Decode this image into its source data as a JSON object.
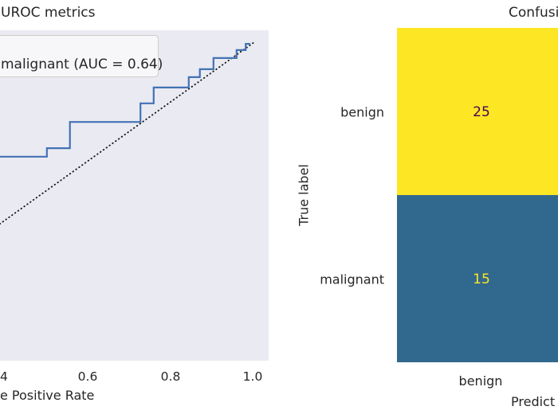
{
  "chart_data": [
    {
      "type": "line",
      "subtype": "roc-curve",
      "title_visible": "UROC metrics",
      "xlabel_visible": "e Positive Rate",
      "legend": [
        "malignant (AUC = 0.64)"
      ],
      "auc": 0.64,
      "grid": false,
      "xticks_visible": [
        "4",
        "0.6",
        "0.8",
        "1.0"
      ],
      "xtick_values": [
        0.4,
        0.6,
        0.8,
        1.0
      ],
      "x_visible_range": [
        0.386,
        1.05
      ],
      "series": [
        {
          "name": "malignant (AUC = 0.64)",
          "color": "#4272b4",
          "points": [
            [
              0.386,
              0.614
            ],
            [
              0.5,
              0.614
            ],
            [
              0.5,
              0.643
            ],
            [
              0.556,
              0.643
            ],
            [
              0.556,
              0.732
            ],
            [
              0.727,
              0.732
            ],
            [
              0.727,
              0.795
            ],
            [
              0.759,
              0.795
            ],
            [
              0.759,
              0.849
            ],
            [
              0.844,
              0.849
            ],
            [
              0.844,
              0.884
            ],
            [
              0.871,
              0.884
            ],
            [
              0.871,
              0.911
            ],
            [
              0.904,
              0.911
            ],
            [
              0.904,
              0.949
            ],
            [
              0.96,
              0.949
            ],
            [
              0.96,
              0.976
            ],
            [
              0.982,
              0.976
            ],
            [
              0.982,
              0.997
            ],
            [
              0.991,
              0.997
            ],
            [
              0.991,
              1.0
            ]
          ]
        }
      ],
      "chance_line": {
        "points": [
          [
            0.386,
            0.386
          ],
          [
            1.0,
            1.0
          ]
        ],
        "color": "#1a1a1a",
        "style": "dotted"
      },
      "plot_bg": "#eaeaf2"
    },
    {
      "type": "heatmap",
      "subtype": "confusion-matrix",
      "title_visible": "Confusi",
      "ylabel": "True label",
      "xlabel_visible": "Predict",
      "rows": [
        "benign",
        "malignant"
      ],
      "cols_visible": [
        "benign"
      ],
      "values": [
        [
          25
        ],
        [
          15
        ]
      ],
      "cell_colors": [
        [
          "#fde725"
        ],
        [
          "#31688e"
        ]
      ],
      "text_colors": [
        [
          "#440154"
        ],
        [
          "#fde725"
        ]
      ]
    }
  ]
}
